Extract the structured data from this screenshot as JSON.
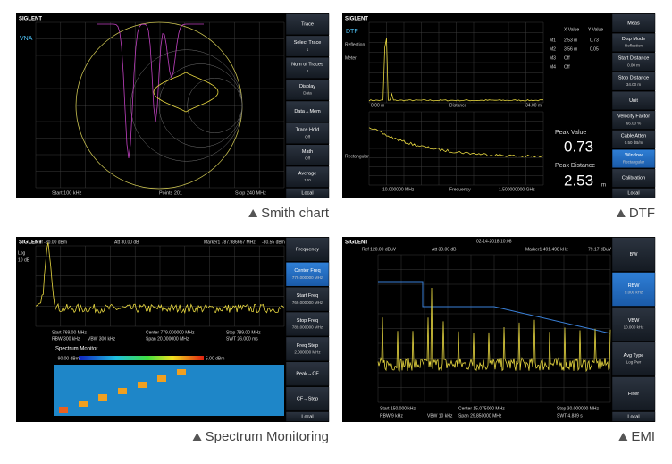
{
  "panels": [
    {
      "caption": "Smith chart",
      "logo": "SIGLENT",
      "labels": [
        "VNA",
        "Start 100 kHz",
        "Points 201",
        "Stop 240 MHz"
      ],
      "softkeys": [
        [
          "Trace"
        ],
        [
          "Select Trace",
          "1"
        ],
        [
          "Num of Traces",
          "2"
        ],
        [
          "Display",
          "Data"
        ],
        [
          "Data→Mem"
        ],
        [
          "Trace Hold",
          "Off"
        ],
        [
          "Math",
          "Off"
        ],
        [
          "Average",
          "100"
        ],
        [
          "Local"
        ]
      ]
    },
    {
      "caption": "DTF",
      "logo": "SIGLENT",
      "labels": [
        "DTF",
        "Reflection",
        "Meter",
        "Rectangular",
        "0.00 m",
        "Distance",
        "34.00 m",
        "10.000000 MHz",
        "Frequency",
        "1.500000000 GHz",
        "X Value",
        "Y Value",
        "M1",
        "2.53 m",
        "0.73",
        "M2",
        "3.56 m",
        "0.05",
        "M3",
        "Off",
        "M4",
        "Off",
        "Peak Value",
        "0.73",
        "Peak Distance",
        "2.53",
        "m"
      ],
      "softkeys": [
        [
          "Meas"
        ],
        [
          "Disp Mode",
          "Reflection"
        ],
        [
          "Start Distance",
          "0.00 m"
        ],
        [
          "Stop Distance",
          "34.00 m"
        ],
        [
          "Unit"
        ],
        [
          "Velocity Factor",
          "66.00 %"
        ],
        [
          "Cable Atten",
          "0.50 dB/m"
        ],
        [
          "Window",
          "Rectangular"
        ],
        [
          "Calibration"
        ],
        [
          "Local"
        ]
      ]
    },
    {
      "caption": "Spectrum Monitoring",
      "logo": "SIGLENT",
      "labels": [
        "Ref -20.00 dBm",
        "Att 30.00 dB",
        "Marker1 787.986667 MHz",
        "-80.55 dBm",
        "Log",
        "10 dB",
        "Start 769.00 MHz",
        "Center 779.000000 MHz",
        "Stop 789.00 MHz",
        "RBW 300 kHz",
        "VBW 300 kHz",
        "Span 20.000000 MHz",
        "SWT 26.000 ms",
        "Spectrum Monitor",
        "-90.00 dBm",
        "5.00 dBm"
      ],
      "softkeys": [
        [
          "Frequency"
        ],
        [
          "Center Freq",
          "779.000000 MHz"
        ],
        [
          "Start Freq",
          "769.000000 MHz"
        ],
        [
          "Stop Freq",
          "789.000000 MHz"
        ],
        [
          "Freq Step",
          "2.000000 MHz"
        ],
        [
          "Peak→CF"
        ],
        [
          "CF→Step"
        ],
        [
          "Local"
        ]
      ]
    },
    {
      "caption": "EMI",
      "logo": "SIGLENT",
      "labels": [
        "Ref 120.00 dBuV",
        "Att 30.00 dB",
        "02-14-2018 10:08",
        "Marker1 491.498 kHz",
        "79.17 dBuV",
        "Start 150.000 kHz",
        "Center 15.075000 MHz",
        "Stop 30.000000 MHz",
        "RBW 9 kHz",
        "VBW 10 kHz",
        "Span 29.850000 MHz",
        "SWT 4.839 s"
      ],
      "softkeys": [
        [
          "BW"
        ],
        [
          "RBW",
          "9.000 kHz"
        ],
        [
          "VBW",
          "10.000 kHz"
        ],
        [
          "Avg Type",
          "Log Pwr"
        ],
        [
          "Filter"
        ],
        [
          "Local"
        ]
      ]
    }
  ]
}
